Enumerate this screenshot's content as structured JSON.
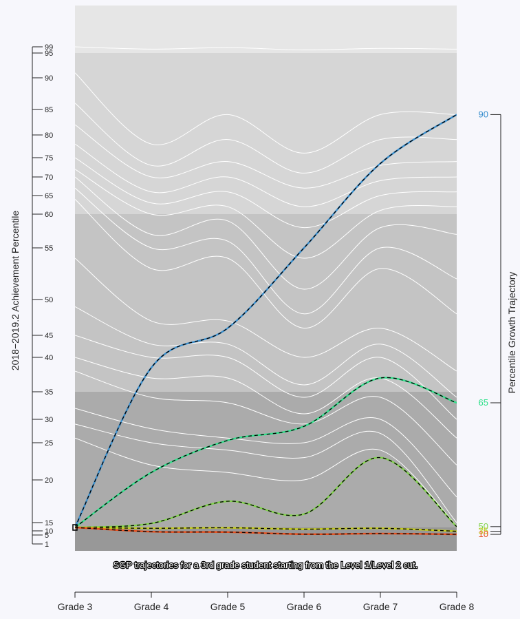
{
  "chart_data": {
    "type": "line",
    "y_axis_title": "2018−2019.2 Achievement Percentile",
    "right_axis_title": "Percentile Growth Trajectory",
    "caption": "SGP trajectories for a 3rd grade student starting from the Level 1/Level 2 cut.",
    "categories": [
      "Grade 3",
      "Grade 4",
      "Grade 5",
      "Grade 6",
      "Grade 7",
      "Grade 8"
    ],
    "left_ticks": [
      1,
      5,
      10,
      15,
      20,
      25,
      30,
      35,
      40,
      45,
      50,
      55,
      60,
      65,
      70,
      75,
      80,
      85,
      90,
      95,
      99
    ],
    "bands": [
      {
        "from": 95,
        "to": 100,
        "color": "#e6e6e6"
      },
      {
        "from": 60,
        "to": 95,
        "color": "#d6d6d6"
      },
      {
        "from": 35,
        "to": 60,
        "color": "#c4c4c4"
      },
      {
        "from": 12,
        "to": 35,
        "color": "#ababab"
      },
      {
        "from": 0,
        "to": 12,
        "color": "#989898"
      }
    ],
    "start": {
      "grade": "Grade 3",
      "percentile": 12
    },
    "background_curves": [
      {
        "level": 1,
        "values": [
          99,
          97.5,
          98.5,
          97,
          98,
          97.5
        ]
      },
      {
        "level": 2,
        "values": [
          91,
          78,
          84,
          76,
          84,
          84
        ]
      },
      {
        "level": 3,
        "values": [
          86,
          73,
          79,
          71,
          79,
          79
        ]
      },
      {
        "level": 4,
        "values": [
          82,
          70,
          74,
          67,
          73,
          74
        ]
      },
      {
        "level": 5,
        "values": [
          78,
          66,
          70,
          62,
          69,
          70
        ]
      },
      {
        "level": 6,
        "values": [
          75,
          63,
          66,
          58,
          65,
          66
        ]
      },
      {
        "level": 7,
        "values": [
          72,
          60,
          62,
          54,
          61,
          62
        ]
      },
      {
        "level": 8,
        "values": [
          70,
          57,
          59,
          51,
          58,
          57
        ]
      },
      {
        "level": 9,
        "values": [
          67,
          55,
          56,
          48,
          55,
          52
        ]
      },
      {
        "level": 10,
        "values": [
          64,
          53,
          54,
          46,
          53,
          48
        ]
      },
      {
        "level": 11,
        "values": [
          54,
          47,
          47,
          40,
          46,
          38
        ]
      },
      {
        "level": 12,
        "values": [
          49,
          43,
          43,
          36,
          43,
          34
        ]
      },
      {
        "level": 13,
        "values": [
          45,
          40,
          40,
          34,
          40,
          30
        ]
      },
      {
        "level": 14,
        "values": [
          40,
          37,
          37,
          31,
          37,
          26
        ]
      },
      {
        "level": 15,
        "values": [
          38,
          34,
          33,
          29,
          34,
          22
        ]
      },
      {
        "level": 16,
        "values": [
          32,
          28,
          26,
          25,
          30,
          18
        ]
      },
      {
        "level": 17,
        "values": [
          29,
          25,
          24,
          23,
          27,
          15
        ]
      },
      {
        "level": 18,
        "values": [
          26,
          22,
          21,
          20,
          24,
          13
        ]
      }
    ],
    "series": [
      {
        "name": "90",
        "color": "#3a8fce",
        "values": [
          12,
          38.5,
          46,
          55,
          73.5,
          84
        ]
      },
      {
        "name": "65",
        "color": "#2fe08a",
        "values": [
          12,
          21,
          25.5,
          28.5,
          37,
          33
        ]
      },
      {
        "name": "50",
        "color": "#7fd24a",
        "values": [
          12,
          14.5,
          17.5,
          16,
          23,
          12.5
        ]
      },
      {
        "name": "35",
        "color": "#c4cc1e",
        "values": [
          12,
          11.5,
          11.8,
          11,
          11.5,
          9.5
        ]
      },
      {
        "name": "10",
        "color": "#e8501e",
        "values": [
          12,
          9,
          8.5,
          6,
          6.7,
          5.8
        ]
      }
    ],
    "right_labels": [
      {
        "label": "90",
        "color": "#3a8fce",
        "value": 84
      },
      {
        "label": "65",
        "color": "#2fe08a",
        "value": 33
      },
      {
        "label": "50",
        "color": "#7fd24a",
        "value": 12.5
      },
      {
        "label": "35",
        "color": "#c4cc1e",
        "value": 9.5
      },
      {
        "label": "10",
        "color": "#e8501e",
        "value": 5.8
      }
    ]
  }
}
